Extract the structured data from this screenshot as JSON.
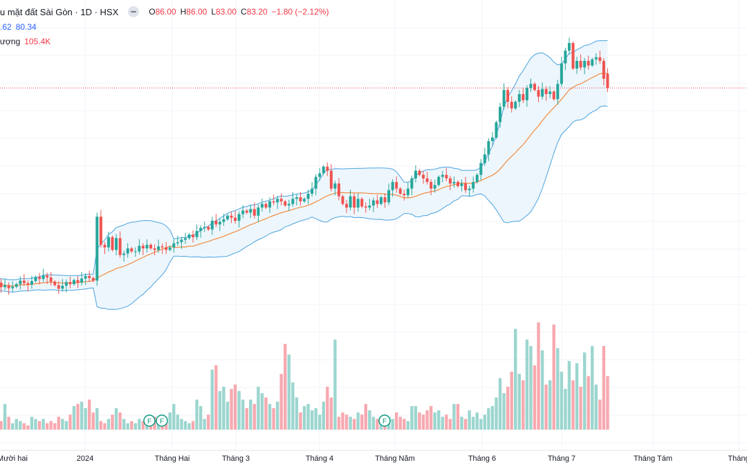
{
  "header": {
    "title": "u mặt đất Sài Gòn · 1D · HSX",
    "ohlc": [
      {
        "k": "O",
        "v": "86.00"
      },
      {
        "k": "H",
        "v": "86.00"
      },
      {
        "k": "L",
        "v": "83.00"
      },
      {
        "k": "C",
        "v": "83.20"
      },
      {
        "k": "",
        "v": "−1.80 (−2.12%)"
      }
    ],
    "bb_values": [
      ".62",
      "80.34"
    ],
    "volume_label": "ượng",
    "volume_value": "105.4K"
  },
  "colors": {
    "up": "#26a69a",
    "down": "#ef5350",
    "up_volume": "#9cd6cf",
    "down_volume": "#f7a9b0",
    "bb_band": "#4aa3e0",
    "bb_fill": "#eaf4fb",
    "ma": "#f28b3d",
    "price_line": "#f23645",
    "grid": "#f0f3fa"
  },
  "x_labels": [
    "Mười hai",
    "2024",
    "Tháng Hai",
    "Tháng 3",
    "Tháng 4",
    "Tháng Năm",
    "Tháng 6",
    "Tháng 7",
    "Tháng Tám",
    "Tháng"
  ],
  "event_marker": "F",
  "chart_data": {
    "type": "candlestick",
    "last_price": 83.2,
    "price_range": [
      30,
      95
    ],
    "start": [
      45.1,
      44.2,
      44.6,
      44.0,
      44.3,
      44.8,
      45.5,
      45.0,
      44.7,
      45.4,
      46.2,
      45.8,
      46.5,
      46.1,
      45.3,
      44.6,
      43.9,
      44.5,
      45.2,
      44.8,
      45.6,
      45.1,
      45.9,
      46.4,
      46.0,
      45.5
    ],
    "closes": [
      45.1,
      44.2,
      44.6,
      44.0,
      44.3,
      44.8,
      45.5,
      45.0,
      44.7,
      45.4,
      46.2,
      45.8,
      46.5,
      46.1,
      45.3,
      44.6,
      43.9,
      44.5,
      45.2,
      44.8,
      45.6,
      45.1,
      45.9,
      46.4,
      46.0,
      45.5,
      58.0,
      52.5,
      52.0,
      54.0,
      51.5,
      53.8,
      50.5,
      50.8,
      51.8,
      51.2,
      51.2,
      52.3,
      51.8,
      52.5,
      51.8,
      51.5,
      52.2,
      52.0,
      51.5,
      52.0,
      52.8,
      53.0,
      53.5,
      53.8,
      54.5,
      54.0,
      55.2,
      55.8,
      56.0,
      55.5,
      57.2,
      56.5,
      57.0,
      57.5,
      58.2,
      57.8,
      57.2,
      58.5,
      59.2,
      58.8,
      59.5,
      58.2,
      59.8,
      60.5,
      59.8,
      61.0,
      60.8,
      61.5,
      61.0,
      60.2,
      60.5,
      61.5,
      61.8,
      61.0,
      61.5,
      62.5,
      63.5,
      65.8,
      66.5,
      67.8,
      67.0,
      63.5,
      64.5,
      62.0,
      60.5,
      59.8,
      62.0,
      59.8,
      61.5,
      60.0,
      59.8,
      60.2,
      61.2,
      60.5,
      61.8,
      60.8,
      63.2,
      64.8,
      63.5,
      62.5,
      62.2,
      63.5,
      65.5,
      67.0,
      66.2,
      65.5,
      64.8,
      63.5,
      64.2,
      65.8,
      66.2,
      65.5,
      64.5,
      64.8,
      64.0,
      64.5,
      63.2,
      63.5,
      64.8,
      66.2,
      68.5,
      70.2,
      72.8,
      73.5,
      76.5,
      79.5,
      82.8,
      80.5,
      79.2,
      80.5,
      82.0,
      80.8,
      83.2,
      84.0,
      82.8,
      81.5,
      83.0,
      82.0,
      82.5,
      81.0,
      84.0,
      88.0,
      90.5,
      92.0,
      87.0,
      88.5,
      87.2,
      88.5,
      87.6,
      88.8,
      89.2,
      88.5,
      85.0,
      83.2
    ],
    "opens": [
      45.6,
      45.1,
      44.2,
      44.6,
      44.0,
      44.3,
      44.8,
      45.5,
      45.0,
      44.7,
      45.4,
      46.2,
      45.8,
      46.5,
      46.1,
      45.3,
      44.6,
      43.9,
      44.5,
      45.2,
      44.8,
      45.6,
      45.1,
      45.9,
      46.4,
      46.0,
      45.5,
      58.0,
      52.5,
      52.0,
      54.0,
      51.5,
      53.8,
      50.5,
      50.8,
      51.8,
      51.2,
      51.2,
      52.3,
      51.8,
      52.5,
      51.8,
      51.5,
      52.2,
      52.0,
      51.5,
      52.0,
      52.8,
      53.0,
      53.5,
      53.8,
      54.5,
      54.0,
      55.2,
      55.8,
      56.0,
      55.5,
      57.2,
      56.5,
      57.0,
      57.5,
      58.2,
      57.8,
      57.2,
      58.5,
      59.2,
      58.8,
      59.5,
      58.2,
      59.8,
      60.5,
      59.8,
      61.0,
      60.8,
      61.5,
      61.0,
      60.2,
      60.5,
      61.5,
      61.8,
      61.0,
      61.5,
      62.5,
      63.5,
      65.8,
      66.5,
      67.8,
      67.0,
      63.5,
      64.5,
      62.0,
      60.5,
      59.8,
      62.0,
      59.8,
      61.5,
      60.0,
      59.8,
      60.2,
      61.2,
      60.5,
      61.8,
      60.8,
      63.2,
      64.8,
      63.5,
      62.5,
      62.2,
      63.5,
      65.5,
      67.0,
      66.2,
      65.5,
      64.8,
      63.5,
      64.2,
      65.8,
      66.2,
      65.5,
      64.5,
      64.8,
      64.0,
      64.5,
      63.2,
      63.5,
      64.8,
      66.2,
      68.5,
      70.2,
      72.8,
      73.5,
      76.5,
      79.5,
      82.8,
      80.5,
      79.2,
      80.5,
      82.0,
      80.8,
      83.2,
      84.0,
      82.8,
      81.5,
      83.0,
      82.0,
      82.5,
      81.0,
      84.0,
      88.0,
      90.5,
      92.0,
      87.0,
      88.5,
      87.2,
      88.5,
      87.6,
      88.8,
      89.2,
      88.5,
      86.0
    ],
    "volumes": [
      0.3,
      0.4,
      1.2,
      0.6,
      0.3,
      0.5,
      0.4,
      0.3,
      0.2,
      0.6,
      0.5,
      0.4,
      0.5,
      0.3,
      0.4,
      0.3,
      0.6,
      0.5,
      0.4,
      0.7,
      1.1,
      1.2,
      1.3,
      1.0,
      1.4,
      0.8,
      1.0,
      0.4,
      0.3,
      0.5,
      0.7,
      1.0,
      0.8,
      0.5,
      0.3,
      0.4,
      0.3,
      0.5,
      0.4,
      0.3,
      0.5,
      0.6,
      0.5,
      0.4,
      0.5,
      0.8,
      1.2,
      0.7,
      0.5,
      0.4,
      0.3,
      0.4,
      1.4,
      1.1,
      0.5,
      0.7,
      2.8,
      3.0,
      1.8,
      2.0,
      1.3,
      1.9,
      2.1,
      1.8,
      1.4,
      1.0,
      1.4,
      1.2,
      2.0,
      1.7,
      1.5,
      1.2,
      1.0,
      1.3,
      2.6,
      4.0,
      3.5,
      2.2,
      1.5,
      0.8,
      1.1,
      1.2,
      0.9,
      1.0,
      0.7,
      1.3,
      2.0,
      1.5,
      4.2,
      0.6,
      0.8,
      0.7,
      0.6,
      0.5,
      0.8,
      0.7,
      1.2,
      0.9,
      0.6,
      0.5,
      0.4,
      0.7,
      0.6,
      0.5,
      0.8,
      0.6,
      0.5,
      0.4,
      1.1,
      1.1,
      0.8,
      0.7,
      0.9,
      1.1,
      0.8,
      0.9,
      0.6,
      0.7,
      0.5,
      1.2,
      1.2,
      0.6,
      0.5,
      0.9,
      0.6,
      0.8,
      0.5,
      0.7,
      1.0,
      1.1,
      1.5,
      2.4,
      1.7,
      2.0,
      2.7,
      4.7,
      2.6,
      2.3,
      4.2,
      3.9,
      3.0,
      5.0,
      3.7,
      2.1,
      2.3,
      4.9,
      3.8,
      2.7,
      1.9,
      3.2,
      2.3,
      3.1,
      2.0,
      3.6,
      2.5,
      3.9,
      2.1,
      1.4,
      3.9,
      2.5,
      1.7,
      5.0,
      3.1,
      2.2,
      1.5,
      2.5,
      1.8,
      4.1,
      2.1,
      1.4,
      3.2,
      5.0
    ],
    "volume_unit": "relative"
  }
}
